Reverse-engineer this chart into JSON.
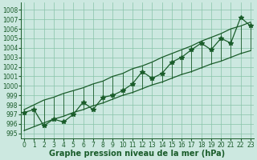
{
  "x": [
    0,
    1,
    2,
    3,
    4,
    5,
    6,
    7,
    8,
    9,
    10,
    11,
    12,
    13,
    14,
    15,
    16,
    17,
    18,
    19,
    20,
    21,
    22,
    23
  ],
  "pressure_zigzag": [
    997.2,
    997.5,
    995.8,
    996.5,
    996.2,
    997.0,
    998.3,
    997.5,
    998.8,
    999.0,
    999.5,
    1000.2,
    1001.5,
    1000.8,
    1001.3,
    1002.5,
    1003.0,
    1003.8,
    1004.5,
    1003.8,
    1005.0,
    1004.5,
    1007.2,
    1006.3
  ],
  "pressure_upper": [
    997.5,
    998.0,
    998.5,
    998.8,
    999.2,
    999.5,
    999.8,
    1000.2,
    1000.5,
    1001.0,
    1001.3,
    1001.8,
    1002.1,
    1002.5,
    1003.0,
    1003.4,
    1003.8,
    1004.2,
    1004.7,
    1005.1,
    1005.5,
    1006.0,
    1006.3,
    1006.7
  ],
  "pressure_lower": [
    995.3,
    995.7,
    996.1,
    996.5,
    996.8,
    997.2,
    997.5,
    997.9,
    998.2,
    998.6,
    999.0,
    999.3,
    999.7,
    1000.1,
    1000.4,
    1000.8,
    1001.2,
    1001.5,
    1001.9,
    1002.3,
    1002.6,
    1003.0,
    1003.4,
    1003.7
  ],
  "ylim": [
    994.5,
    1008.8
  ],
  "yticks": [
    995,
    996,
    997,
    998,
    999,
    1000,
    1001,
    1002,
    1003,
    1004,
    1005,
    1006,
    1007,
    1008
  ],
  "xticks": [
    0,
    1,
    2,
    3,
    4,
    5,
    6,
    7,
    8,
    9,
    10,
    11,
    12,
    13,
    14,
    15,
    16,
    17,
    18,
    19,
    20,
    21,
    22,
    23
  ],
  "xlabel": "Graphe pression niveau de la mer (hPa)",
  "bg_color": "#cce8e0",
  "line_color": "#1a5c2a",
  "grid_color": "#88c4a8",
  "marker": "*",
  "marker_size": 4,
  "linewidth": 0.9,
  "tick_fontsize": 5.5,
  "label_fontsize": 7.0
}
